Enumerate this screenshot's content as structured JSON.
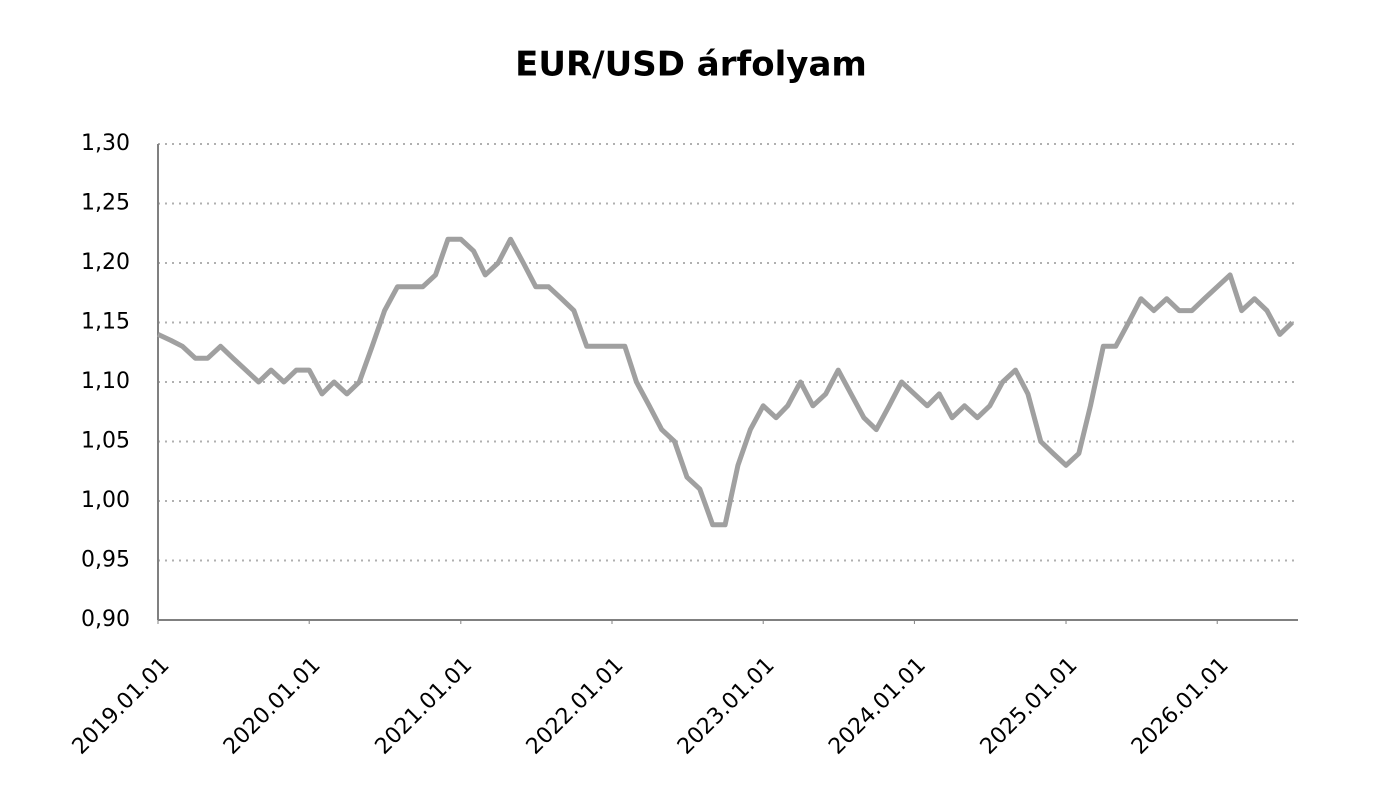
{
  "chart_data": {
    "type": "line",
    "title": "EUR/USD árfolyam",
    "x": [
      "2019.01.01",
      "2019.02.01",
      "2019.03.01",
      "2019.04.01",
      "2019.05.01",
      "2019.06.01",
      "2019.07.01",
      "2019.08.01",
      "2019.09.01",
      "2019.10.01",
      "2019.11.01",
      "2019.12.01",
      "2020.01.01",
      "2020.02.01",
      "2020.03.01",
      "2020.04.01",
      "2020.05.01",
      "2020.06.01",
      "2020.07.01",
      "2020.08.01",
      "2020.09.01",
      "2020.10.01",
      "2020.11.01",
      "2020.12.01",
      "2021.01.01",
      "2021.02.01",
      "2021.03.01",
      "2021.04.01",
      "2021.05.01",
      "2021.06.01",
      "2021.07.01",
      "2021.08.01",
      "2021.09.01",
      "2021.10.01",
      "2021.11.01",
      "2021.12.01",
      "2022.01.01",
      "2022.02.01",
      "2022.03.01",
      "2022.04.01",
      "2022.05.01",
      "2022.06.01",
      "2022.07.01",
      "2022.08.01",
      "2022.09.01",
      "2022.10.01",
      "2022.11.01",
      "2022.12.01",
      "2023.01.01",
      "2023.02.01",
      "2023.03.01",
      "2023.04.01",
      "2023.05.01",
      "2023.06.01",
      "2023.07.01",
      "2023.08.01",
      "2023.09.01",
      "2023.10.01",
      "2023.11.01",
      "2023.12.01",
      "2024.01.01",
      "2024.02.01",
      "2024.03.01",
      "2024.04.01",
      "2024.05.01",
      "2024.06.01",
      "2024.07.01",
      "2024.08.01",
      "2024.09.01",
      "2024.10.01",
      "2024.11.01",
      "2024.12.01",
      "2025.01.01",
      "2025.02.01",
      "2025.03.01",
      "2025.04.01",
      "2025.05.01",
      "2025.06.01",
      "2025.07.01",
      "2025.08.01",
      "2025.09.01",
      "2025.10.01",
      "2025.11.01",
      "2025.12.01",
      "2026.01.01",
      "2026.02.01",
      "2026.03.01",
      "2026.04.01",
      "2026.05.01",
      "2026.06.01",
      "2026.07.01"
    ],
    "series": [
      {
        "color": "#a0a0a0",
        "values": [
          1.14,
          1.135,
          1.13,
          1.12,
          1.12,
          1.13,
          1.12,
          1.11,
          1.1,
          1.11,
          1.1,
          1.11,
          1.11,
          1.09,
          1.1,
          1.09,
          1.1,
          1.13,
          1.16,
          1.18,
          1.18,
          1.18,
          1.19,
          1.22,
          1.22,
          1.21,
          1.19,
          1.2,
          1.22,
          1.2,
          1.18,
          1.18,
          1.17,
          1.16,
          1.13,
          1.13,
          1.13,
          1.13,
          1.1,
          1.08,
          1.06,
          1.05,
          1.02,
          1.01,
          0.98,
          0.98,
          1.03,
          1.06,
          1.08,
          1.07,
          1.08,
          1.1,
          1.08,
          1.09,
          1.11,
          1.09,
          1.07,
          1.06,
          1.08,
          1.1,
          1.09,
          1.08,
          1.09,
          1.07,
          1.08,
          1.07,
          1.08,
          1.1,
          1.11,
          1.09,
          1.05,
          1.04,
          1.03,
          1.04,
          1.08,
          1.13,
          1.13,
          1.15,
          1.17,
          1.16,
          1.17,
          1.16,
          1.16,
          1.17,
          1.18,
          1.19,
          1.16,
          1.17,
          1.16,
          1.14,
          1.15
        ]
      }
    ],
    "xlim": [
      "2019.01.01",
      "2026.07.15"
    ],
    "xticks": [
      "2019.01.01",
      "2020.01.01",
      "2021.01.01",
      "2022.01.01",
      "2023.01.01",
      "2024.01.01",
      "2025.01.01",
      "2026.01.01"
    ],
    "ylim": [
      0.9,
      1.3
    ],
    "yticks": [
      {
        "value": 0.9,
        "label": "0,90"
      },
      {
        "value": 0.95,
        "label": "0,95"
      },
      {
        "value": 1.0,
        "label": "1,00"
      },
      {
        "value": 1.05,
        "label": "1,05"
      },
      {
        "value": 1.1,
        "label": "1,10"
      },
      {
        "value": 1.15,
        "label": "1,15"
      },
      {
        "value": 1.2,
        "label": "1,20"
      },
      {
        "value": 1.25,
        "label": "1,25"
      },
      {
        "value": 1.3,
        "label": "1,30"
      }
    ],
    "grid": true
  }
}
